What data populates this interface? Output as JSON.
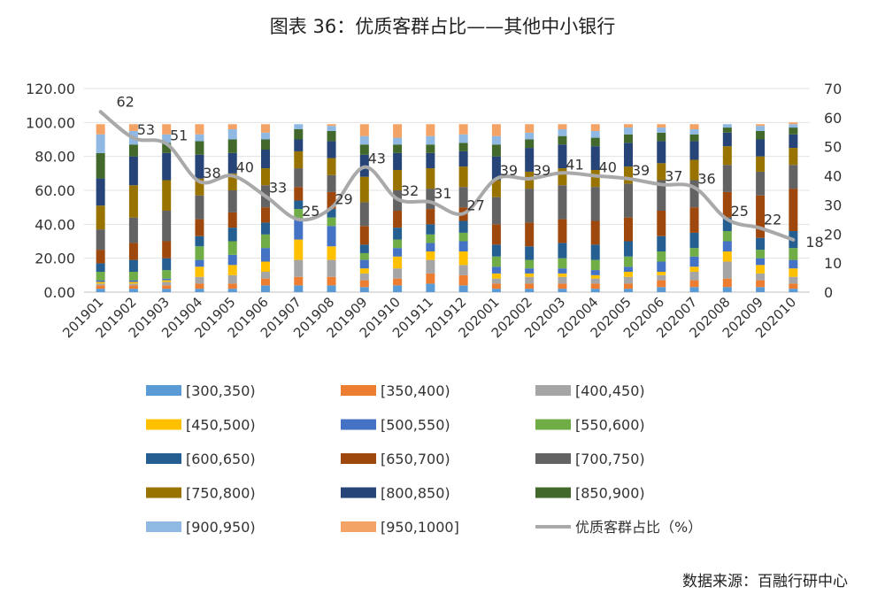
{
  "chart_data": {
    "type": "bar",
    "title": "图表 36：优质客群占比——其他中小银行",
    "source": "数据来源：百融行研中心",
    "categories": [
      "201901",
      "201902",
      "201903",
      "201904",
      "201905",
      "201906",
      "201907",
      "201908",
      "201909",
      "201910",
      "201911",
      "201912",
      "202001",
      "202002",
      "202003",
      "202004",
      "202005",
      "202006",
      "202007",
      "202008",
      "202009",
      "202010"
    ],
    "left_axis": {
      "min": 0,
      "max": 120,
      "ticks": [
        "0.00",
        "20.00",
        "40.00",
        "60.00",
        "80.00",
        "100.00",
        "120.00"
      ]
    },
    "right_axis": {
      "min": 0,
      "max": 70,
      "ticks": [
        "0",
        "10",
        "20",
        "30",
        "40",
        "50",
        "60",
        "70"
      ]
    },
    "stacked": true,
    "grid": true,
    "legend_position": "bottom",
    "series": [
      {
        "name": "[300,350)",
        "color": "#5b9bd5",
        "values": [
          2,
          2,
          2,
          2,
          2,
          4,
          4,
          4,
          3,
          4,
          5,
          4,
          2,
          2,
          2,
          2,
          2,
          3,
          3,
          3,
          3,
          2
        ]
      },
      {
        "name": "[350,400)",
        "color": "#ed7d31",
        "values": [
          2,
          2,
          2,
          3,
          3,
          4,
          5,
          5,
          4,
          4,
          6,
          6,
          3,
          3,
          3,
          3,
          3,
          4,
          4,
          5,
          4,
          3
        ]
      },
      {
        "name": "[400,450)",
        "color": "#a5a5a5",
        "values": [
          1,
          1,
          2,
          4,
          5,
          4,
          10,
          10,
          4,
          6,
          8,
          6,
          3,
          4,
          4,
          3,
          4,
          3,
          5,
          10,
          4,
          4
        ]
      },
      {
        "name": "[450,500)",
        "color": "#ffc000",
        "values": [
          1,
          1,
          1,
          6,
          6,
          6,
          12,
          8,
          3,
          7,
          5,
          8,
          3,
          2,
          2,
          2,
          3,
          2,
          3,
          6,
          5,
          5
        ]
      },
      {
        "name": "[500,550)",
        "color": "#4472c4",
        "values": [
          1,
          1,
          1,
          4,
          6,
          8,
          12,
          12,
          5,
          5,
          5,
          6,
          4,
          3,
          3,
          3,
          3,
          6,
          6,
          6,
          4,
          5
        ]
      },
      {
        "name": "[550,600)",
        "color": "#70ad47",
        "values": [
          5,
          5,
          5,
          8,
          8,
          8,
          6,
          5,
          4,
          5,
          5,
          5,
          6,
          5,
          6,
          6,
          6,
          6,
          5,
          6,
          5,
          7
        ]
      },
      {
        "name": "[600,650)",
        "color": "#255e91",
        "values": [
          5,
          7,
          7,
          6,
          8,
          7,
          5,
          5,
          5,
          7,
          6,
          7,
          7,
          8,
          9,
          9,
          9,
          9,
          9,
          8,
          7,
          10
        ]
      },
      {
        "name": "[650,700)",
        "color": "#9e480e",
        "values": [
          8,
          10,
          10,
          10,
          9,
          9,
          8,
          10,
          11,
          10,
          9,
          8,
          12,
          14,
          14,
          14,
          14,
          15,
          15,
          15,
          25,
          25
        ]
      },
      {
        "name": "[700,750)",
        "color": "#636363",
        "values": [
          12,
          15,
          18,
          14,
          13,
          13,
          11,
          10,
          14,
          12,
          12,
          12,
          16,
          20,
          20,
          20,
          20,
          18,
          16,
          16,
          14,
          14
        ]
      },
      {
        "name": "[750,800)",
        "color": "#997300",
        "values": [
          14,
          19,
          18,
          10,
          10,
          10,
          10,
          10,
          15,
          12,
          12,
          12,
          10,
          10,
          10,
          10,
          10,
          10,
          12,
          11,
          9,
          10
        ]
      },
      {
        "name": "[800,850)",
        "color": "#264478",
        "values": [
          16,
          17,
          16,
          14,
          12,
          11,
          7,
          10,
          13,
          10,
          9,
          9,
          14,
          14,
          14,
          14,
          14,
          13,
          11,
          8,
          10,
          8
        ]
      },
      {
        "name": "[850,900)",
        "color": "#43682b",
        "values": [
          15,
          7,
          6,
          8,
          8,
          6,
          6,
          6,
          6,
          5,
          5,
          5,
          7,
          5,
          5,
          5,
          5,
          5,
          4,
          3,
          5,
          4
        ]
      },
      {
        "name": "[900,950)",
        "color": "#8fb9e3",
        "values": [
          11,
          8,
          5,
          4,
          6,
          4,
          3,
          3,
          5,
          4,
          5,
          5,
          5,
          4,
          4,
          4,
          4,
          3,
          3,
          2,
          3,
          2
        ]
      },
      {
        "name": "[950,1000]",
        "color": "#f4a366",
        "values": [
          6,
          4,
          6,
          6,
          3,
          5,
          0,
          1,
          7,
          8,
          7,
          6,
          7,
          5,
          3,
          4,
          2,
          2,
          3,
          0,
          1,
          1
        ]
      }
    ],
    "line_series": {
      "name": "优质客群占比（%）",
      "color": "#a9a9a9",
      "axis": "right",
      "values": [
        62,
        53,
        51,
        38,
        40,
        33,
        25,
        29,
        43,
        32,
        31,
        27,
        39,
        39,
        41,
        40,
        39,
        37,
        36,
        25,
        22,
        18
      ],
      "labels": [
        "62",
        "53",
        "51",
        "38",
        "40",
        "33",
        "25",
        "29",
        "43",
        "32",
        "31",
        "27",
        "39",
        "39",
        "41",
        "40",
        "39",
        "37",
        "36",
        "25",
        "22",
        "18"
      ]
    }
  }
}
